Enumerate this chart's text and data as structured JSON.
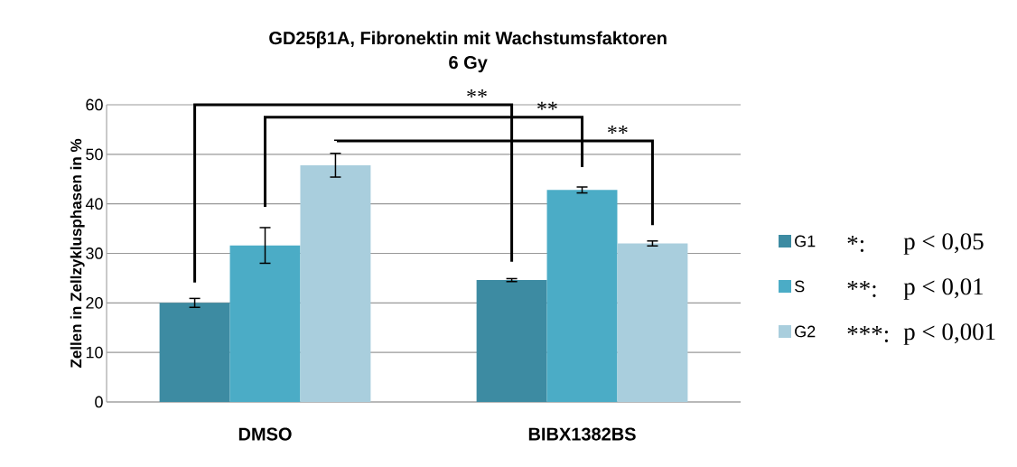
{
  "chart_data": {
    "type": "bar",
    "title": "GD25β1A, Fibronektin mit Wachstumsfaktoren\n6 Gy",
    "ylabel": "Zellen in Zellzyklusphasen in %",
    "categories": [
      "DMSO",
      "BIBX1382BS"
    ],
    "series": [
      {
        "name": "G1",
        "color": "#3d8ba2",
        "values": [
          20.0,
          24.6
        ],
        "errors": [
          0.9,
          0.3
        ]
      },
      {
        "name": "S",
        "color": "#4bacc6",
        "values": [
          31.6,
          42.8
        ],
        "errors": [
          3.6,
          0.6
        ]
      },
      {
        "name": "G2",
        "color": "#a9cedd",
        "values": [
          47.8,
          32.0
        ],
        "errors": [
          2.4,
          0.5
        ]
      }
    ],
    "ylim": [
      0,
      60
    ],
    "yticks": [
      0,
      10,
      20,
      30,
      40,
      50,
      60
    ],
    "grid": "y",
    "legend": "right",
    "annotations": [
      "**",
      "**",
      "**",
      "*:",
      "p < 0,05",
      "**:",
      "p < 0,01",
      "***:",
      "p < 0,001"
    ]
  }
}
